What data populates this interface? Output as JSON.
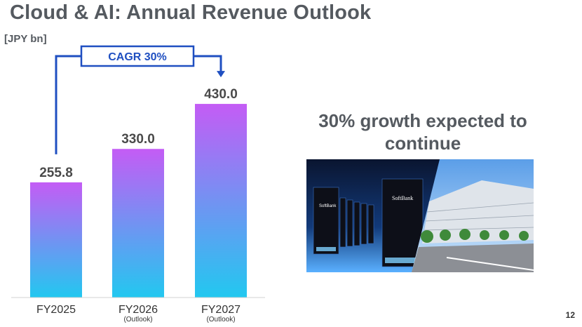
{
  "slide": {
    "title": "Cloud & AI: Annual Revenue Outlook",
    "unit": "[JPY bn]",
    "growth_text_line1": "30% growth expected to",
    "growth_text_line2": "continue",
    "cagr_label": "CAGR 30%",
    "page_number": "12",
    "photo_left_brand": "SoftBank",
    "photo_right_brand": "SoftBank"
  },
  "colors": {
    "title": "#555a60",
    "bar_top": "#c45cf5",
    "bar_bottom": "#22c8f0",
    "cagr_box": "#1f4fc1"
  },
  "chart_data": {
    "type": "bar",
    "categories": [
      "FY2025",
      "FY2026",
      "FY2027"
    ],
    "subcategories": [
      "",
      "(Outlook)",
      "(Outlook)"
    ],
    "values": [
      255.8,
      330.0,
      430.0
    ],
    "value_labels": [
      "255.8",
      "330.0",
      "430.0"
    ],
    "ylim": [
      0,
      500
    ],
    "annotation": "CAGR 30%",
    "grid": false
  }
}
